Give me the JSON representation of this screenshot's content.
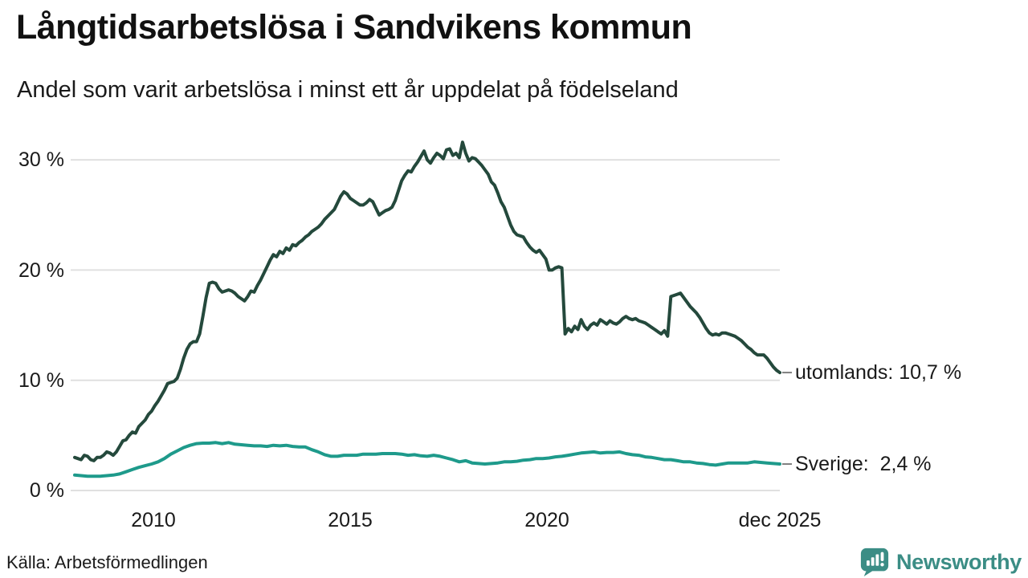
{
  "header": {
    "title": "Långtidsarbetslösa i Sandvikens kommun",
    "subtitle": "Andel som varit arbetslösa i minst ett år uppdelat på födelseland"
  },
  "footer": {
    "source": "Källa: Arbetsförmedlingen",
    "brand": "Newsworthy"
  },
  "colors": {
    "line_utomlands": "#24493c",
    "line_sverige": "#1e9a8b",
    "grid": "#e0e0e0",
    "label_dash": "#7f7f7f",
    "brand": "#3b8d85",
    "text": "#1a1a1a"
  },
  "chart_data": {
    "type": "line",
    "title": "Långtidsarbetslösa i Sandvikens kommun",
    "subtitle": "Andel som varit arbetslösa i minst ett år uppdelat på födelseland",
    "unit": "%",
    "x_range_years": [
      2008.0,
      2025.92
    ],
    "x_ticks": [
      "2010",
      "2015",
      "2020",
      "dec 2025"
    ],
    "x_tick_years": [
      2010,
      2015,
      2020,
      2025.92
    ],
    "y_ticks": [
      "30 %",
      "20 %",
      "10 %",
      "0 %"
    ],
    "y_gridlines_pct": [
      0,
      10,
      20,
      30
    ],
    "ylim": [
      0,
      32.8
    ],
    "grid": "horizontal",
    "legend_position": "right-end-labels",
    "series": [
      {
        "name": "utomlands",
        "label": "utomlands: 10,7 %",
        "last_value": 10.7,
        "color": "#24493c",
        "values": [
          3.0,
          2.9,
          2.8,
          3.2,
          3.1,
          2.8,
          2.7,
          3.0,
          3.0,
          3.2,
          3.5,
          3.4,
          3.2,
          3.5,
          4.0,
          4.5,
          4.6,
          5.0,
          5.3,
          5.2,
          5.8,
          6.1,
          6.4,
          6.9,
          7.2,
          7.7,
          8.1,
          8.6,
          9.1,
          9.7,
          9.8,
          9.9,
          10.2,
          11.0,
          12.0,
          12.8,
          13.3,
          13.5,
          13.5,
          14.2,
          15.8,
          17.5,
          18.8,
          18.9,
          18.8,
          18.3,
          18.0,
          18.1,
          18.2,
          18.1,
          17.9,
          17.6,
          17.4,
          17.2,
          17.6,
          18.1,
          18.0,
          18.6,
          19.1,
          19.7,
          20.3,
          20.9,
          21.4,
          21.2,
          21.7,
          21.5,
          22.0,
          21.8,
          22.3,
          22.2,
          22.5,
          22.7,
          23.0,
          23.2,
          23.5,
          23.7,
          23.9,
          24.2,
          24.6,
          24.9,
          25.2,
          25.5,
          26.1,
          26.7,
          27.1,
          26.9,
          26.5,
          26.3,
          26.1,
          25.9,
          25.9,
          26.1,
          26.4,
          26.2,
          25.6,
          25.0,
          25.2,
          25.4,
          25.5,
          25.7,
          26.3,
          27.2,
          28.1,
          28.6,
          29.0,
          28.9,
          29.4,
          29.8,
          30.3,
          30.8,
          30.0,
          29.7,
          30.2,
          30.6,
          30.4,
          30.1,
          30.9,
          31.0,
          30.4,
          30.6,
          30.2,
          31.6,
          30.6,
          29.9,
          30.2,
          30.1,
          29.8,
          29.5,
          29.1,
          28.7,
          28.0,
          27.7,
          27.0,
          26.2,
          25.7,
          24.9,
          24.1,
          23.5,
          23.2,
          23.1,
          23.0,
          22.5,
          22.1,
          21.8,
          21.6,
          21.8,
          21.4,
          21.0,
          20.0,
          20.0,
          20.2,
          20.3,
          20.2,
          14.2,
          14.7,
          14.4,
          14.9,
          14.6,
          15.5,
          14.9,
          14.6,
          15.0,
          15.2,
          15.0,
          15.5,
          15.3,
          15.1,
          15.4,
          15.2,
          15.1,
          15.3,
          15.6,
          15.8,
          15.6,
          15.5,
          15.6,
          15.4,
          15.3,
          15.2,
          15.0,
          14.8,
          14.6,
          14.4,
          14.2,
          14.5,
          14.0,
          17.6,
          17.7,
          17.8,
          17.9,
          17.5,
          17.1,
          16.7,
          16.4,
          16.1,
          15.7,
          15.2,
          14.7,
          14.3,
          14.1,
          14.2,
          14.1,
          14.3,
          14.3,
          14.2,
          14.1,
          14.0,
          13.8,
          13.6,
          13.3,
          13.0,
          12.8,
          12.5,
          12.3,
          12.3,
          12.3,
          12.0,
          11.6,
          11.2,
          10.9,
          10.7
        ]
      },
      {
        "name": "Sverige",
        "label": "Sverige:  2,4 %",
        "last_value": 2.4,
        "color": "#1e9a8b",
        "values": [
          1.4,
          1.35,
          1.3,
          1.3,
          1.3,
          1.35,
          1.4,
          1.5,
          1.7,
          1.9,
          2.1,
          2.25,
          2.4,
          2.6,
          2.9,
          3.3,
          3.6,
          3.9,
          4.1,
          4.25,
          4.3,
          4.3,
          4.35,
          4.25,
          4.35,
          4.2,
          4.15,
          4.1,
          4.05,
          4.05,
          4.0,
          4.1,
          4.05,
          4.1,
          4.0,
          3.95,
          3.95,
          3.7,
          3.5,
          3.25,
          3.1,
          3.1,
          3.2,
          3.2,
          3.2,
          3.3,
          3.3,
          3.3,
          3.35,
          3.35,
          3.35,
          3.3,
          3.2,
          3.25,
          3.15,
          3.1,
          3.2,
          3.1,
          2.95,
          2.8,
          2.6,
          2.7,
          2.5,
          2.45,
          2.4,
          2.45,
          2.5,
          2.6,
          2.6,
          2.65,
          2.75,
          2.8,
          2.9,
          2.9,
          2.95,
          3.05,
          3.1,
          3.2,
          3.3,
          3.4,
          3.45,
          3.5,
          3.4,
          3.45,
          3.45,
          3.5,
          3.35,
          3.25,
          3.2,
          3.05,
          3.0,
          2.9,
          2.8,
          2.8,
          2.7,
          2.6,
          2.6,
          2.5,
          2.45,
          2.35,
          2.3,
          2.4,
          2.5,
          2.5,
          2.5,
          2.5,
          2.6,
          2.55,
          2.5,
          2.45,
          2.4
        ]
      }
    ]
  }
}
